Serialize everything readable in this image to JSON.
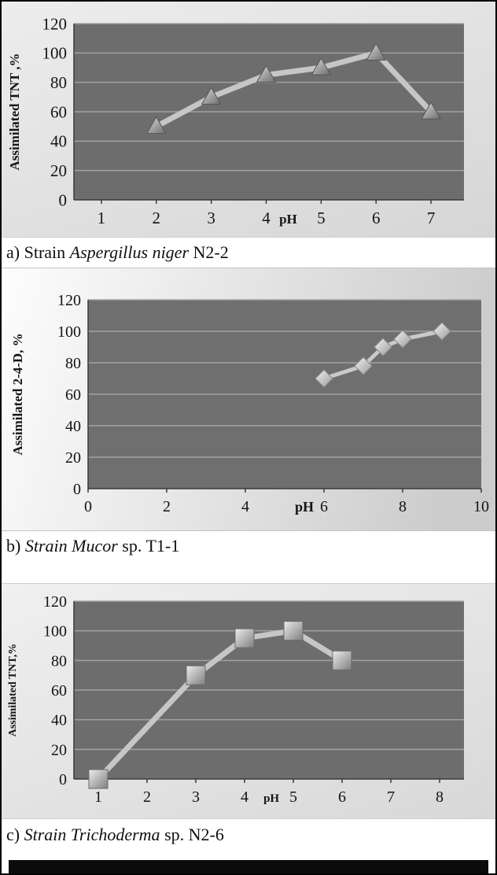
{
  "captions": {
    "a": [
      {
        "t": "a) Strain ",
        "i": false
      },
      {
        "t": "Aspergillus niger",
        "i": true
      },
      {
        "t": " N2-2",
        "i": false
      }
    ],
    "b": [
      {
        "t": "b) ",
        "i": false
      },
      {
        "t": "Strain Mucor",
        "i": true
      },
      {
        "t": " sp. T1-1",
        "i": false
      }
    ],
    "c": [
      {
        "t": "c) ",
        "i": false
      },
      {
        "t": "Strain Trichoderma",
        "i": true
      },
      {
        "t": " sp. N2-6",
        "i": false
      }
    ]
  },
  "chart_data": [
    {
      "type": "line",
      "marker": "triangle",
      "x": [
        2,
        3,
        4,
        5,
        6,
        7
      ],
      "values": [
        50,
        70,
        85,
        90,
        100,
        60
      ],
      "xticks": [
        1,
        2,
        3,
        4,
        5,
        6,
        7
      ],
      "yticks": [
        0,
        20,
        40,
        60,
        80,
        100,
        120
      ],
      "xlim": [
        0.5,
        7.6
      ],
      "ylim": [
        0,
        120
      ],
      "title": "",
      "ylabel": "Assimilated TNT ,%",
      "xlabel": "pH",
      "xlabel_x": 4.4,
      "grid": true,
      "legend": "none",
      "colors": {
        "plot_bg": "#6d6d6d",
        "grid": "#a2a2a2",
        "line": "#c6c6c6",
        "marker_light": "#d9d9d9",
        "marker_dark": "#6e6e6e",
        "marker_edge": "#565656"
      }
    },
    {
      "type": "line",
      "marker": "diamond",
      "x": [
        6,
        7,
        7.5,
        8,
        9
      ],
      "values": [
        70,
        78,
        90,
        95,
        100
      ],
      "xticks": [
        0,
        2,
        4,
        6,
        8,
        10
      ],
      "yticks": [
        0,
        20,
        40,
        60,
        80,
        100,
        120
      ],
      "xlim": [
        0,
        10
      ],
      "ylim": [
        0,
        120
      ],
      "title": "",
      "ylabel": "Assimilated 2-4-D, %",
      "xlabel": "pH",
      "xlabel_x": 5.5,
      "grid": true,
      "legend": "none",
      "colors": {
        "plot_bg": "#6f6f6f",
        "grid": "#a2a2a2",
        "line": "#c9c9c9",
        "marker_light": "#f2f2f2",
        "marker_dark": "#9a9a9a",
        "marker_edge": "#8a8a8a"
      }
    },
    {
      "type": "line",
      "marker": "square",
      "x": [
        1,
        3,
        4,
        5,
        6
      ],
      "values": [
        0,
        70,
        95,
        100,
        80
      ],
      "xticks": [
        1,
        2,
        3,
        4,
        5,
        6,
        7,
        8
      ],
      "yticks": [
        0,
        20,
        40,
        60,
        80,
        100,
        120
      ],
      "xlim": [
        0.5,
        8.5
      ],
      "ylim": [
        0,
        120
      ],
      "title": "",
      "ylabel": "Assimilated TNT,%",
      "xlabel": "pH",
      "xlabel_x": 4.55,
      "grid": true,
      "legend": "none",
      "colors": {
        "plot_bg": "#6d6d6d",
        "grid": "#a2a2a2",
        "line": "#c6c6c6",
        "marker_light": "#ededed",
        "marker_dark": "#7e7e7e",
        "marker_edge": "#696969"
      }
    }
  ]
}
